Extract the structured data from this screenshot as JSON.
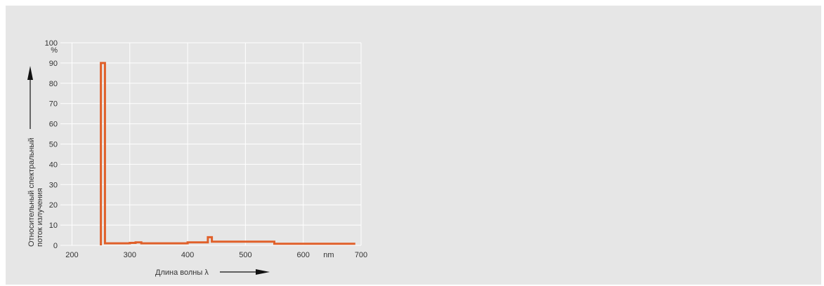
{
  "chart_data": {
    "type": "line",
    "title": "",
    "xlabel": "Длина волны λ",
    "ylabel_lines": [
      "Относительный спектральный",
      "поток излучения"
    ],
    "y_unit": "%",
    "x_unit": "nm",
    "xlim": [
      180,
      700
    ],
    "ylim": [
      0,
      100
    ],
    "x_ticks": [
      200,
      300,
      400,
      500,
      600,
      700
    ],
    "y_ticks": [
      0,
      10,
      20,
      30,
      40,
      50,
      60,
      70,
      80,
      90,
      100
    ],
    "grid": true,
    "series": [
      {
        "name": "",
        "color": "#e0602a",
        "x": [
          250,
          250,
          257,
          257,
          300,
          300,
          310,
          310,
          320,
          320,
          400,
          400,
          435,
          435,
          442,
          442,
          550,
          550,
          690
        ],
        "y": [
          0,
          90,
          90,
          1,
          1,
          1.2,
          1.2,
          1.5,
          1.5,
          1,
          1,
          1.5,
          1.5,
          4,
          4,
          1.8,
          1.8,
          0.8,
          0.8
        ]
      }
    ]
  }
}
